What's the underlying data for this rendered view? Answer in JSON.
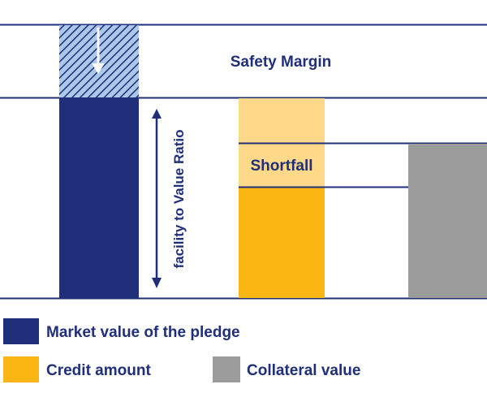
{
  "diagram": {
    "labels": {
      "safety_margin": "Safety Margin",
      "shortfall": "Shortfall",
      "ratio": "facility to Value Ratio"
    },
    "legend": [
      {
        "label": "Market value of the pledge",
        "color": "#1f2f7a"
      },
      {
        "label": "Credit amount",
        "color": "#fdb714"
      },
      {
        "label": "Collateral value",
        "color": "#9b9b9b"
      }
    ],
    "colors": {
      "navy": "#1f2f7a",
      "hatch_light": "#a9c8ea",
      "credit": "#fdb714",
      "credit_light": "#fed98a",
      "collateral": "#9b9b9b",
      "rule": "#1f2f7a"
    },
    "icons": [
      "arrow-down-icon",
      "double-arrow-icon"
    ]
  }
}
